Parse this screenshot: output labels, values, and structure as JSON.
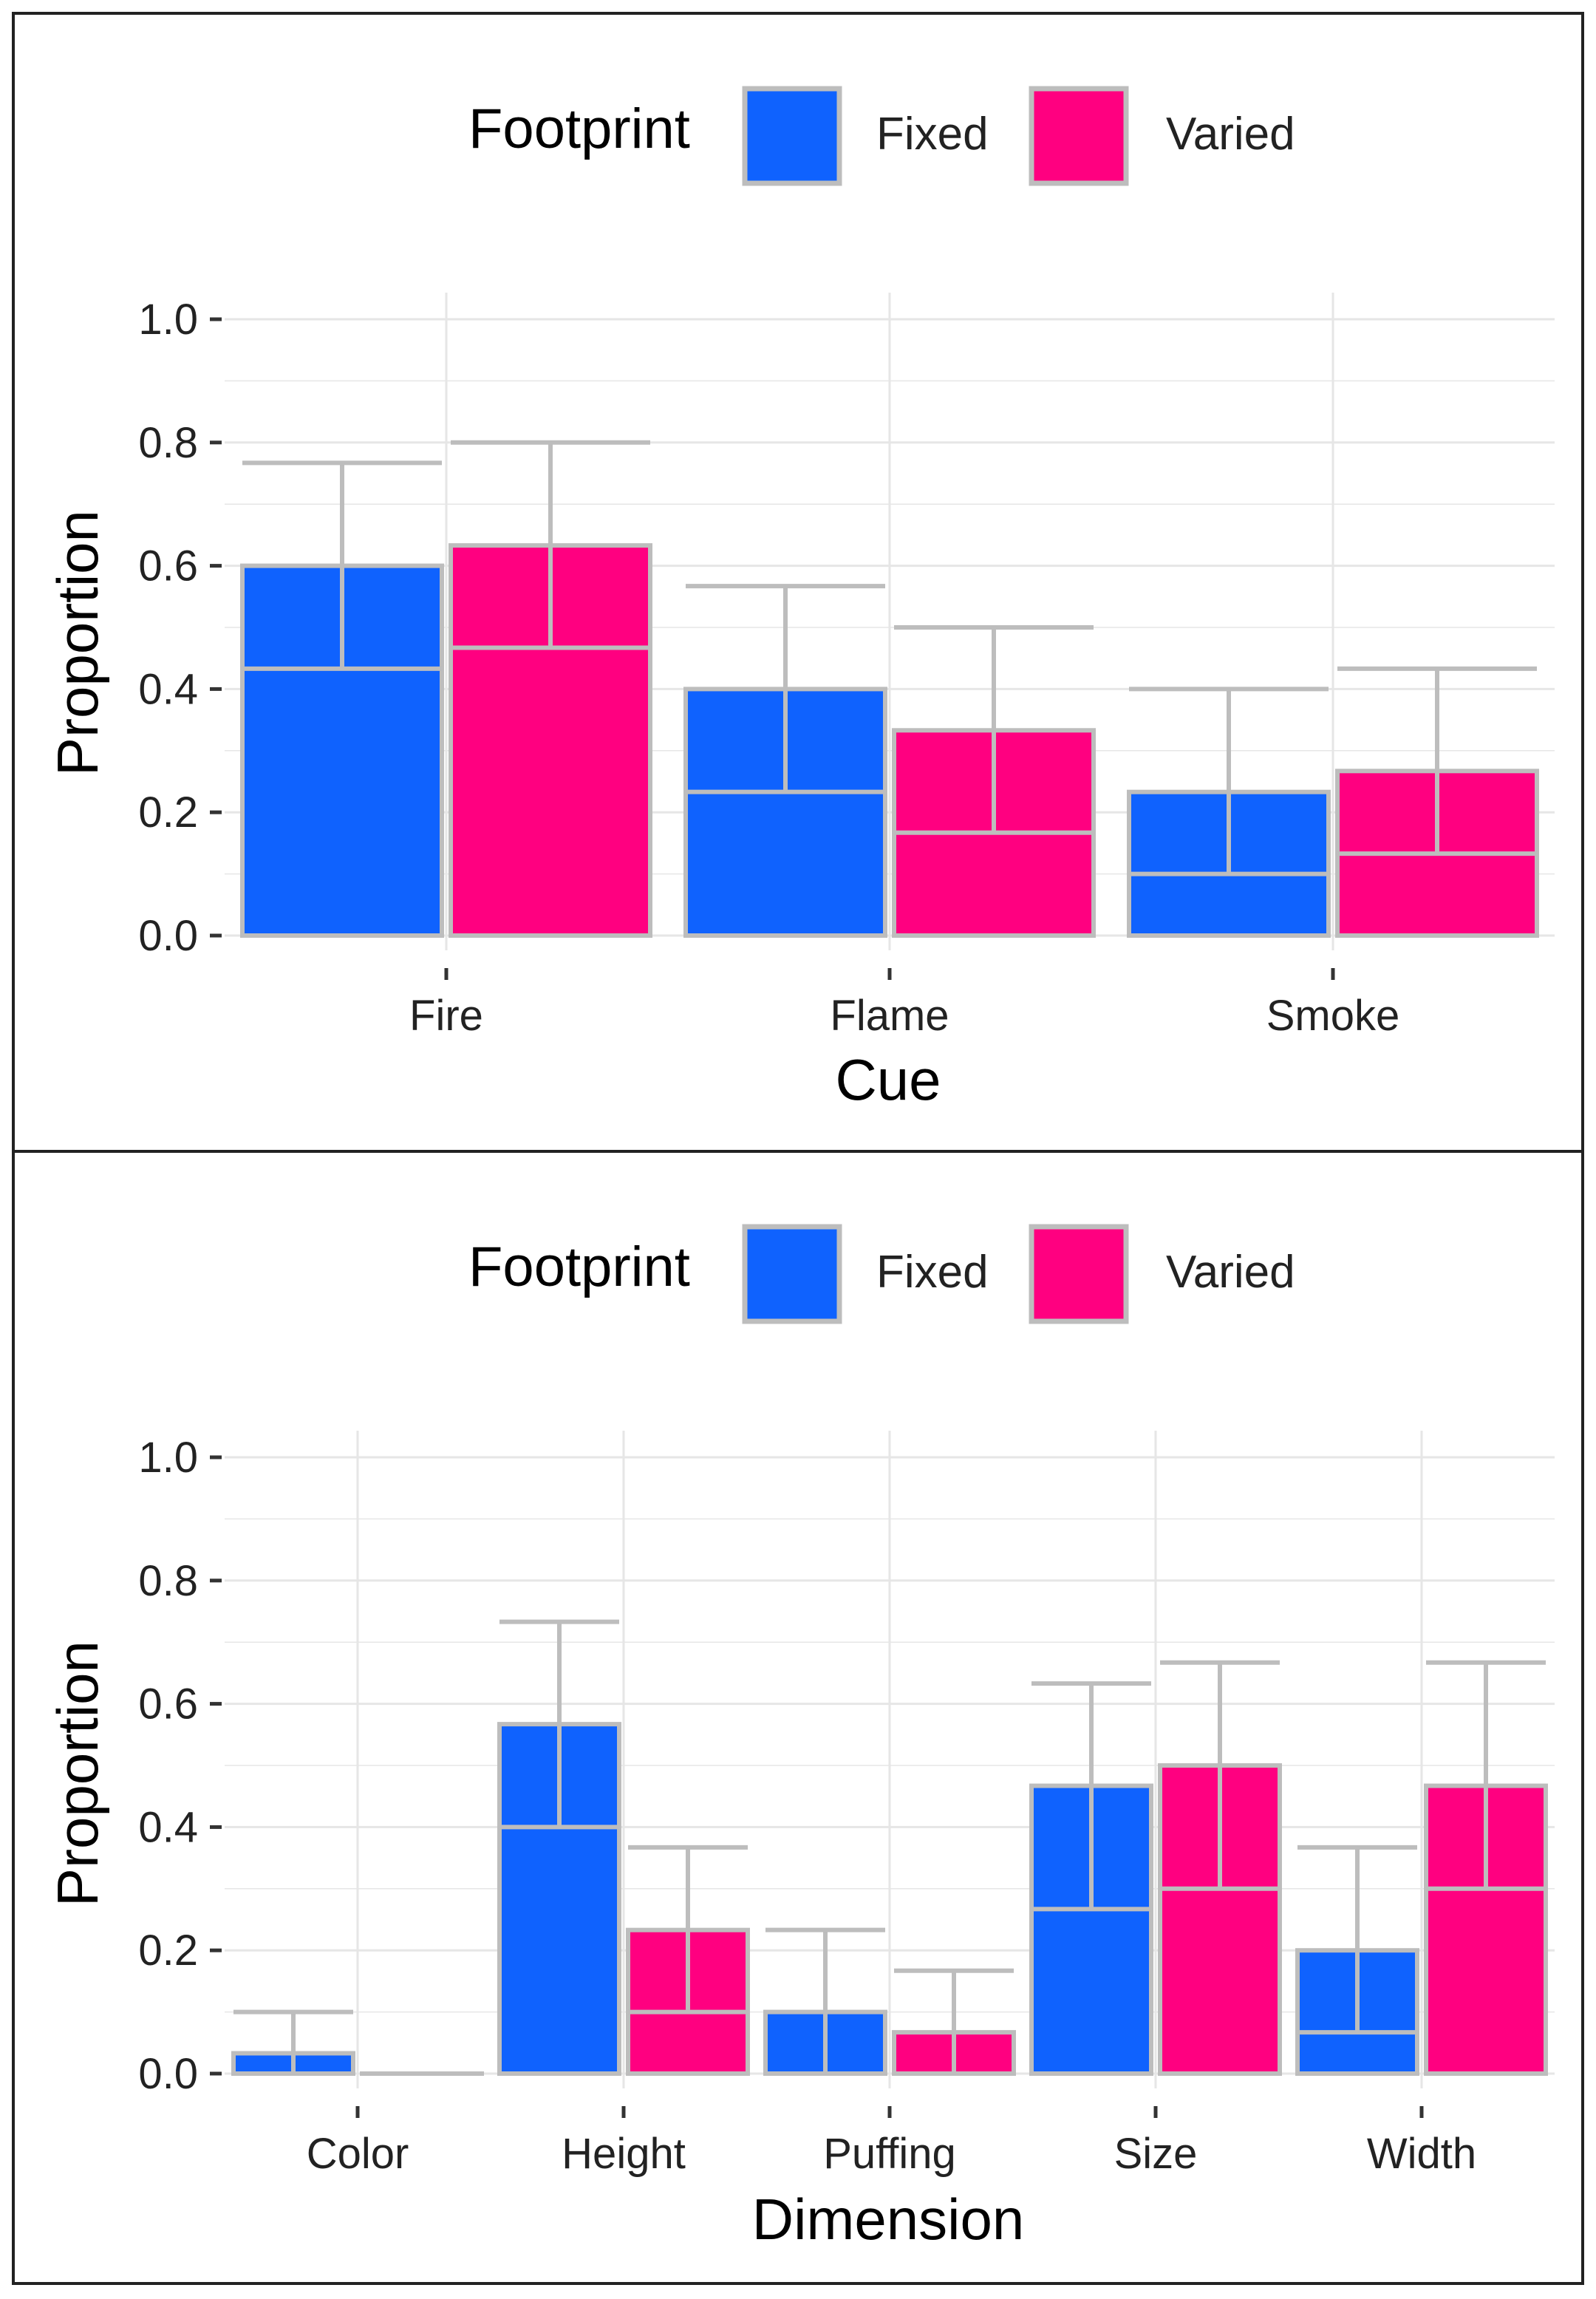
{
  "colors": {
    "fixed": "#0F62FE",
    "varied": "#FF0080",
    "outline": "#BDBDBD",
    "grid": "#E6E6E6"
  },
  "chart_data": [
    {
      "type": "bar",
      "xlabel": "Cue",
      "ylabel": "Proportion",
      "ylim": [
        0,
        1.0
      ],
      "yticks": [
        "0.0",
        "0.2",
        "0.4",
        "0.6",
        "0.8",
        "1.0"
      ],
      "legend": {
        "title": "Footprint",
        "position": "top",
        "entries": [
          "Fixed",
          "Varied"
        ]
      },
      "categories": [
        "Fire",
        "Flame",
        "Smoke"
      ],
      "series": [
        {
          "name": "Fixed",
          "values": [
            0.6,
            0.4,
            0.233
          ],
          "lower": [
            0.433,
            0.233,
            0.1
          ],
          "upper": [
            0.767,
            0.567,
            0.4
          ]
        },
        {
          "name": "Varied",
          "values": [
            0.633,
            0.333,
            0.267
          ],
          "lower": [
            0.467,
            0.167,
            0.133
          ],
          "upper": [
            0.8,
            0.5,
            0.433
          ]
        }
      ]
    },
    {
      "type": "bar",
      "xlabel": "Dimension",
      "ylabel": "Proportion",
      "ylim": [
        0,
        1.0
      ],
      "yticks": [
        "0.0",
        "0.2",
        "0.4",
        "0.6",
        "0.8",
        "1.0"
      ],
      "legend": {
        "title": "Footprint",
        "position": "top",
        "entries": [
          "Fixed",
          "Varied"
        ]
      },
      "categories": [
        "Color",
        "Height",
        "Puffing",
        "Size",
        "Width"
      ],
      "series": [
        {
          "name": "Fixed",
          "values": [
            0.033,
            0.567,
            0.1,
            0.467,
            0.2
          ],
          "lower": [
            0.0,
            0.4,
            0.0,
            0.267,
            0.067
          ],
          "upper": [
            0.1,
            0.733,
            0.233,
            0.633,
            0.367
          ]
        },
        {
          "name": "Varied",
          "values": [
            0.0,
            0.233,
            0.067,
            0.5,
            0.467
          ],
          "lower": [
            0.0,
            0.1,
            0.0,
            0.3,
            0.3
          ],
          "upper": [
            0.0,
            0.367,
            0.167,
            0.667,
            0.667
          ]
        }
      ]
    }
  ]
}
